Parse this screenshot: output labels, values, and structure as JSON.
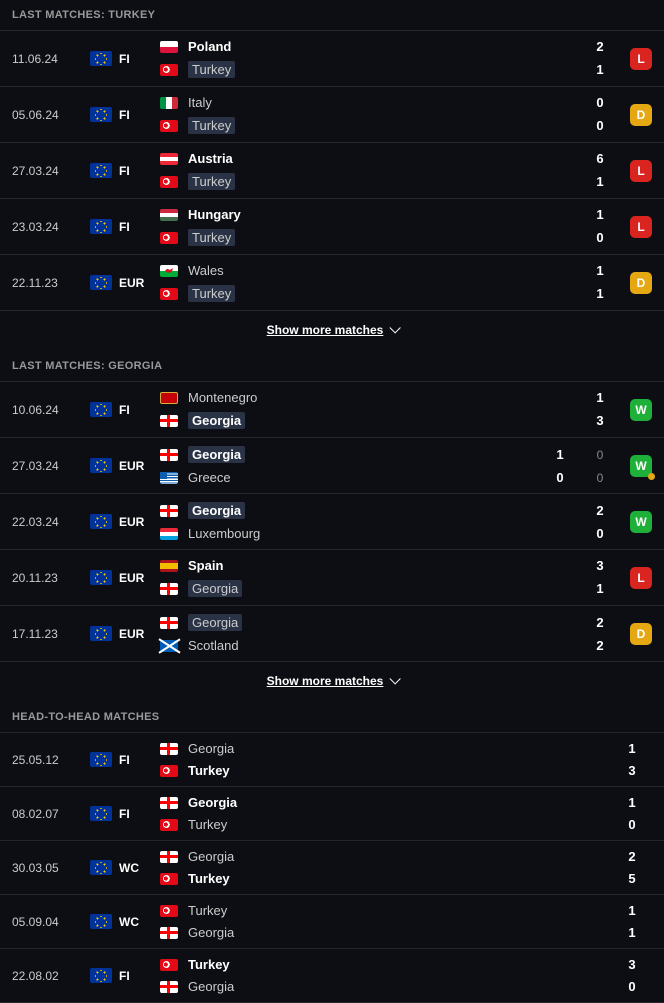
{
  "sections": [
    {
      "title": "LAST MATCHES: TURKEY",
      "show_more": "Show more matches",
      "matches": [
        {
          "date": "11.06.24",
          "comp": "FI",
          "team1": "Poland",
          "flag1": "poland",
          "score1": "2",
          "bold1": true,
          "hl1": false,
          "team2": "Turkey",
          "flag2": "turkey",
          "score2": "1",
          "bold2": false,
          "hl2": true,
          "result": "L"
        },
        {
          "date": "05.06.24",
          "comp": "FI",
          "team1": "Italy",
          "flag1": "italy",
          "score1": "0",
          "bold1": false,
          "hl1": false,
          "team2": "Turkey",
          "flag2": "turkey",
          "score2": "0",
          "bold2": false,
          "hl2": true,
          "result": "D"
        },
        {
          "date": "27.03.24",
          "comp": "FI",
          "team1": "Austria",
          "flag1": "austria",
          "score1": "6",
          "bold1": true,
          "hl1": false,
          "team2": "Turkey",
          "flag2": "turkey",
          "score2": "1",
          "bold2": false,
          "hl2": true,
          "result": "L"
        },
        {
          "date": "23.03.24",
          "comp": "FI",
          "team1": "Hungary",
          "flag1": "hungary",
          "score1": "1",
          "bold1": true,
          "hl1": false,
          "team2": "Turkey",
          "flag2": "turkey",
          "score2": "0",
          "bold2": false,
          "hl2": true,
          "result": "L"
        },
        {
          "date": "22.11.23",
          "comp": "EUR",
          "team1": "Wales",
          "flag1": "wales",
          "score1": "1",
          "bold1": false,
          "hl1": false,
          "team2": "Turkey",
          "flag2": "turkey",
          "score2": "1",
          "bold2": false,
          "hl2": true,
          "result": "D"
        }
      ]
    },
    {
      "title": "LAST MATCHES: GEORGIA",
      "show_more": "Show more matches",
      "matches": [
        {
          "date": "10.06.24",
          "comp": "FI",
          "team1": "Montenegro",
          "flag1": "montenegro",
          "score1": "1",
          "bold1": false,
          "hl1": false,
          "team2": "Georgia",
          "flag2": "georgia",
          "score2": "3",
          "bold2": true,
          "hl2": true,
          "result": "W"
        },
        {
          "date": "27.03.24",
          "comp": "EUR",
          "team1": "Georgia",
          "flag1": "georgia",
          "score1": "1",
          "bold1": true,
          "hl1": true,
          "team2": "Greece",
          "flag2": "greece",
          "score2": "0",
          "bold2": false,
          "hl2": false,
          "result": "W",
          "pen": true,
          "sub1": "0",
          "sub2": "0"
        },
        {
          "date": "22.03.24",
          "comp": "EUR",
          "team1": "Georgia",
          "flag1": "georgia",
          "score1": "2",
          "bold1": true,
          "hl1": true,
          "team2": "Luxembourg",
          "flag2": "luxembourg",
          "score2": "0",
          "bold2": false,
          "hl2": false,
          "result": "W"
        },
        {
          "date": "20.11.23",
          "comp": "EUR",
          "team1": "Spain",
          "flag1": "spain",
          "score1": "3",
          "bold1": true,
          "hl1": false,
          "team2": "Georgia",
          "flag2": "georgia",
          "score2": "1",
          "bold2": false,
          "hl2": true,
          "result": "L"
        },
        {
          "date": "17.11.23",
          "comp": "EUR",
          "team1": "Georgia",
          "flag1": "georgia",
          "score1": "2",
          "bold1": false,
          "hl1": true,
          "team2": "Scotland",
          "flag2": "scotland",
          "score2": "2",
          "bold2": false,
          "hl2": false,
          "result": "D"
        }
      ]
    },
    {
      "title": "HEAD-TO-HEAD MATCHES",
      "matches": [
        {
          "date": "25.05.12",
          "comp": "FI",
          "team1": "Georgia",
          "flag1": "georgia",
          "score1": "1",
          "bold1": false,
          "hl1": false,
          "team2": "Turkey",
          "flag2": "turkey",
          "score2": "3",
          "bold2": true,
          "hl2": false
        },
        {
          "date": "08.02.07",
          "comp": "FI",
          "team1": "Georgia",
          "flag1": "georgia",
          "score1": "1",
          "bold1": true,
          "hl1": false,
          "team2": "Turkey",
          "flag2": "turkey",
          "score2": "0",
          "bold2": false,
          "hl2": false
        },
        {
          "date": "30.03.05",
          "comp": "WC",
          "team1": "Georgia",
          "flag1": "georgia",
          "score1": "2",
          "bold1": false,
          "hl1": false,
          "team2": "Turkey",
          "flag2": "turkey",
          "score2": "5",
          "bold2": true,
          "hl2": false
        },
        {
          "date": "05.09.04",
          "comp": "WC",
          "team1": "Turkey",
          "flag1": "turkey",
          "score1": "1",
          "bold1": false,
          "hl1": false,
          "team2": "Georgia",
          "flag2": "georgia",
          "score2": "1",
          "bold2": false,
          "hl2": false
        },
        {
          "date": "22.08.02",
          "comp": "FI",
          "team1": "Turkey",
          "flag1": "turkey",
          "score1": "3",
          "bold1": true,
          "hl1": false,
          "team2": "Georgia",
          "flag2": "georgia",
          "score2": "0",
          "bold2": false,
          "hl2": false
        }
      ]
    }
  ]
}
